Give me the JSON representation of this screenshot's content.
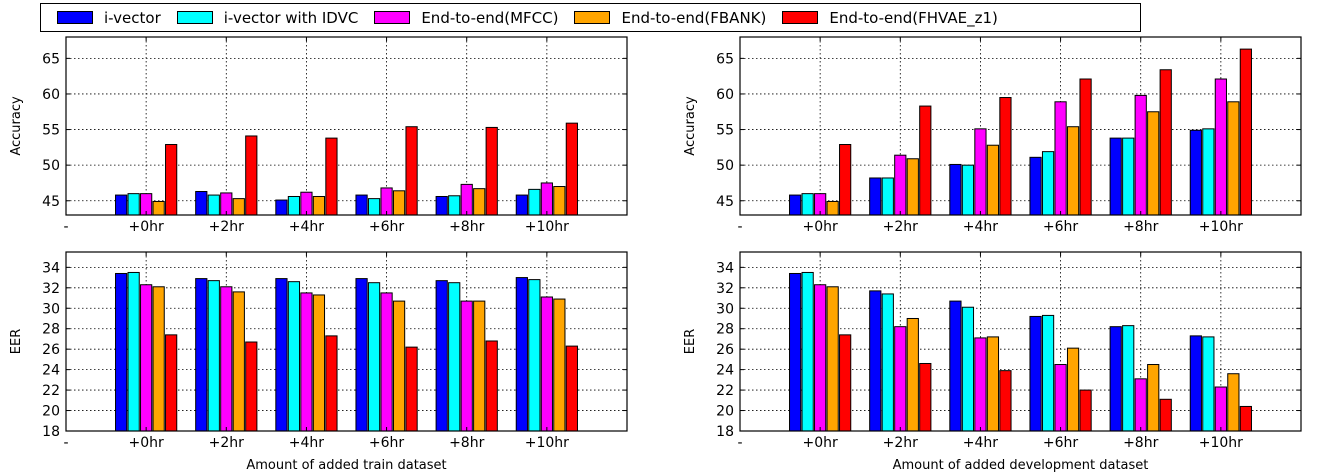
{
  "legend": [
    {
      "name": "i-vector",
      "color": "#0000ff"
    },
    {
      "name": "i-vector with IDVC",
      "color": "#00ffff"
    },
    {
      "name": "End-to-end(MFCC)",
      "color": "#ff00ff"
    },
    {
      "name": "End-to-end(FBANK)",
      "color": "#ffa500"
    },
    {
      "name": "End-to-end(FHVAE_z1)",
      "color": "#ff0000"
    }
  ],
  "chart_data": [
    {
      "type": "bar",
      "position": "top-left",
      "ylabel": "Accuracy",
      "xlabel": "",
      "ylim": [
        43,
        68
      ],
      "yticks": [
        45,
        50,
        55,
        60,
        65
      ],
      "xticklabels": [
        "-",
        "+0hr",
        "+2hr",
        "+4hr",
        "+6hr",
        "+8hr",
        "+10hr"
      ],
      "categories": [
        "+0hr",
        "+2hr",
        "+4hr",
        "+6hr",
        "+8hr",
        "+10hr"
      ],
      "grid": true,
      "series": [
        {
          "name": "i-vector",
          "values": [
            45.8,
            46.3,
            45.1,
            45.8,
            45.6,
            45.8
          ]
        },
        {
          "name": "i-vector with IDVC",
          "values": [
            46.0,
            45.8,
            45.6,
            45.3,
            45.7,
            46.6
          ]
        },
        {
          "name": "End-to-end(MFCC)",
          "values": [
            46.0,
            46.1,
            46.2,
            46.8,
            47.3,
            47.5
          ]
        },
        {
          "name": "End-to-end(FBANK)",
          "values": [
            44.9,
            45.3,
            45.6,
            46.4,
            46.7,
            47.0
          ]
        },
        {
          "name": "End-to-end(FHVAE_z1)",
          "values": [
            52.9,
            54.1,
            53.8,
            55.4,
            55.3,
            55.9
          ]
        }
      ]
    },
    {
      "type": "bar",
      "position": "top-right",
      "ylabel": "Accuracy",
      "xlabel": "",
      "ylim": [
        43,
        68
      ],
      "yticks": [
        45,
        50,
        55,
        60,
        65
      ],
      "xticklabels": [
        "-",
        "+0hr",
        "+2hr",
        "+4hr",
        "+6hr",
        "+8hr",
        "+10hr"
      ],
      "categories": [
        "+0hr",
        "+2hr",
        "+4hr",
        "+6hr",
        "+8hr",
        "+10hr"
      ],
      "grid": true,
      "series": [
        {
          "name": "i-vector",
          "values": [
            45.8,
            48.2,
            50.1,
            51.1,
            53.8,
            54.9
          ]
        },
        {
          "name": "i-vector with IDVC",
          "values": [
            46.0,
            48.2,
            50.0,
            51.9,
            53.8,
            55.1
          ]
        },
        {
          "name": "End-to-end(MFCC)",
          "values": [
            46.0,
            51.4,
            55.1,
            58.9,
            59.8,
            62.1
          ]
        },
        {
          "name": "End-to-end(FBANK)",
          "values": [
            44.9,
            50.9,
            52.8,
            55.4,
            57.5,
            58.9
          ]
        },
        {
          "name": "End-to-end(FHVAE_z1)",
          "values": [
            52.9,
            58.3,
            59.5,
            62.1,
            63.4,
            66.3
          ]
        }
      ]
    },
    {
      "type": "bar",
      "position": "bottom-left",
      "ylabel": "EER",
      "xlabel": "Amount of added train dataset",
      "ylim": [
        18,
        35.5
      ],
      "yticks": [
        18,
        20,
        22,
        24,
        26,
        28,
        30,
        32,
        34
      ],
      "xticklabels": [
        "-",
        "+0hr",
        "+2hr",
        "+4hr",
        "+6hr",
        "+8hr",
        "+10hr"
      ],
      "categories": [
        "+0hr",
        "+2hr",
        "+4hr",
        "+6hr",
        "+8hr",
        "+10hr"
      ],
      "grid": true,
      "series": [
        {
          "name": "i-vector",
          "values": [
            33.4,
            32.9,
            32.9,
            32.9,
            32.7,
            33.0
          ]
        },
        {
          "name": "i-vector with IDVC",
          "values": [
            33.5,
            32.7,
            32.6,
            32.5,
            32.5,
            32.8
          ]
        },
        {
          "name": "End-to-end(MFCC)",
          "values": [
            32.3,
            32.1,
            31.5,
            31.5,
            30.7,
            31.1
          ]
        },
        {
          "name": "End-to-end(FBANK)",
          "values": [
            32.1,
            31.6,
            31.3,
            30.7,
            30.7,
            30.9
          ]
        },
        {
          "name": "End-to-end(FHVAE_z1)",
          "values": [
            27.4,
            26.7,
            27.3,
            26.2,
            26.8,
            26.3
          ]
        }
      ]
    },
    {
      "type": "bar",
      "position": "bottom-right",
      "ylabel": "EER",
      "xlabel": "Amount of added development dataset",
      "ylim": [
        18,
        35.5
      ],
      "yticks": [
        18,
        20,
        22,
        24,
        26,
        28,
        30,
        32,
        34
      ],
      "xticklabels": [
        "-",
        "+0hr",
        "+2hr",
        "+4hr",
        "+6hr",
        "+8hr",
        "+10hr"
      ],
      "categories": [
        "+0hr",
        "+2hr",
        "+4hr",
        "+6hr",
        "+8hr",
        "+10hr"
      ],
      "grid": true,
      "series": [
        {
          "name": "i-vector",
          "values": [
            33.4,
            31.7,
            30.7,
            29.2,
            28.2,
            27.3
          ]
        },
        {
          "name": "i-vector with IDVC",
          "values": [
            33.5,
            31.4,
            30.1,
            29.3,
            28.3,
            27.2
          ]
        },
        {
          "name": "End-to-end(MFCC)",
          "values": [
            32.3,
            28.2,
            27.1,
            24.5,
            23.1,
            22.3
          ]
        },
        {
          "name": "End-to-end(FBANK)",
          "values": [
            32.1,
            29.0,
            27.2,
            26.1,
            24.5,
            23.6
          ]
        },
        {
          "name": "End-to-end(FHVAE_z1)",
          "values": [
            27.4,
            24.6,
            23.9,
            22.0,
            21.1,
            20.4
          ]
        }
      ]
    }
  ]
}
